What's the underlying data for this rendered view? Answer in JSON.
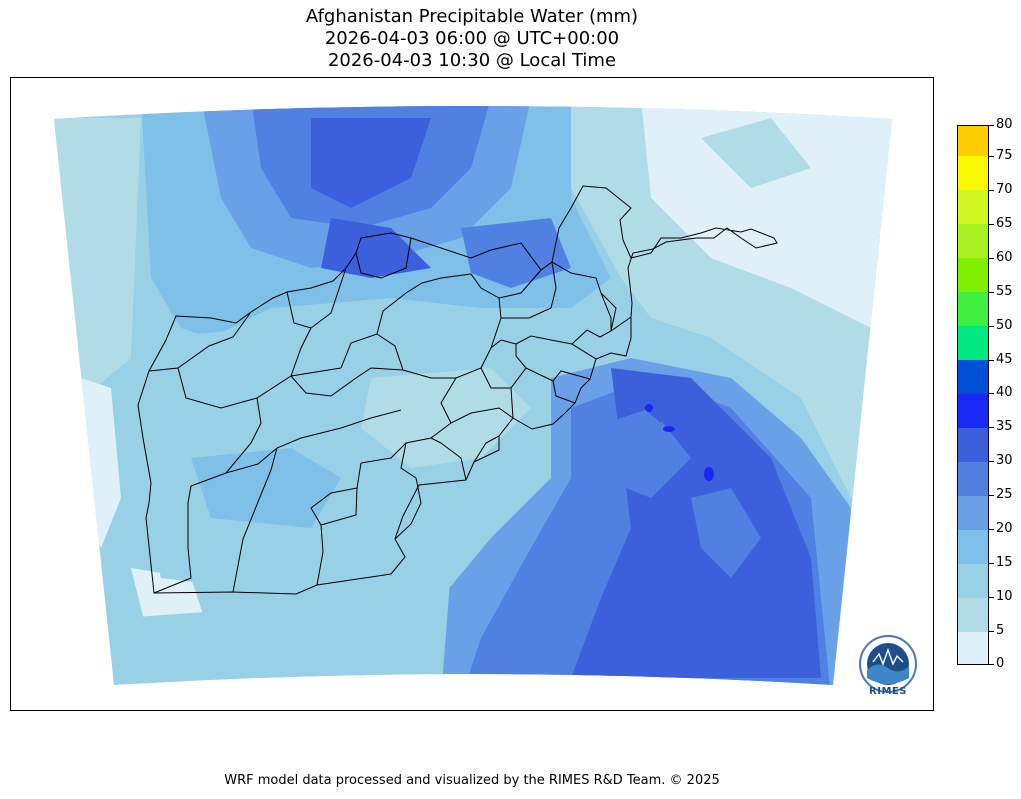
{
  "title": {
    "line1": "Afghanistan Precipitable Water (mm)",
    "line2": "2026-04-03 06:00 @ UTC+00:00",
    "line3": "2026-04-03 10:30 @ Local Time"
  },
  "colorbar": {
    "levels": [
      {
        "value": "0",
        "color": "#e0f0f8"
      },
      {
        "value": "5",
        "color": "#b0dce8"
      },
      {
        "value": "10",
        "color": "#98d0e6"
      },
      {
        "value": "15",
        "color": "#7fc0e8"
      },
      {
        "value": "20",
        "color": "#6aa0e8"
      },
      {
        "value": "25",
        "color": "#5080e2"
      },
      {
        "value": "30",
        "color": "#3c60dc"
      },
      {
        "value": "35",
        "color": "#1a28f5"
      },
      {
        "value": "40",
        "color": "#0050d8"
      },
      {
        "value": "45",
        "color": "#00e880"
      },
      {
        "value": "50",
        "color": "#40f040"
      },
      {
        "value": "55",
        "color": "#80f000"
      },
      {
        "value": "60",
        "color": "#a8f020"
      },
      {
        "value": "65",
        "color": "#d0f820"
      },
      {
        "value": "70",
        "color": "#f8f800"
      },
      {
        "value": "75",
        "color": "#ffcc00"
      },
      {
        "value": "80",
        "color": ""
      }
    ]
  },
  "logo": {
    "text": "RIMES"
  },
  "footer": "WRF model data processed and visualized by the RIMES R&D Team. © 2025"
}
